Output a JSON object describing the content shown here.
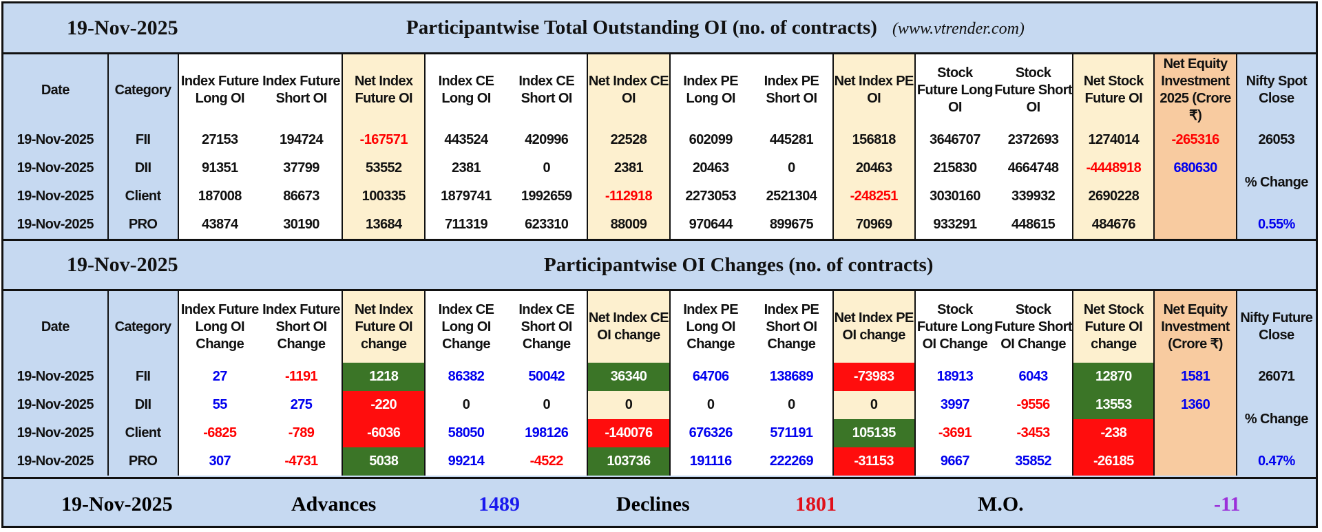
{
  "section1": {
    "date": "19-Nov-2025",
    "title": "Participantwise Total Outstanding OI (no. of contracts)",
    "site": "(www.vtrender.com)",
    "headers": [
      "Date",
      "Category",
      "Index Future Long OI",
      "Index Future Short OI",
      "Net Index Future OI",
      "Index CE Long OI",
      "Index CE Short OI",
      "Net Index CE OI",
      "Index PE Long OI",
      "Index PE Short OI",
      "Net Index PE OI",
      "Stock Future Long OI",
      "Stock Future Short OI",
      "Net Stock Future OI",
      "Net Equity Investment 2025 (Crore ₹)",
      "Nifty Spot Close"
    ],
    "rows": [
      [
        "19-Nov-2025",
        "FII",
        "27153",
        "194724",
        "-167571",
        "443524",
        "420996",
        "22528",
        "602099",
        "445281",
        "156818",
        "3646707",
        "2372693",
        "1274014",
        "-265316"
      ],
      [
        "19-Nov-2025",
        "DII",
        "91351",
        "37799",
        "53552",
        "2381",
        "0",
        "2381",
        "20463",
        "0",
        "20463",
        "215830",
        "4664748",
        "-4448918",
        "680630"
      ],
      [
        "19-Nov-2025",
        "Client",
        "187008",
        "86673",
        "100335",
        "1879741",
        "1992659",
        "-112918",
        "2273053",
        "2521304",
        "-248251",
        "3030160",
        "339932",
        "2690228",
        ""
      ],
      [
        "19-Nov-2025",
        "PRO",
        "43874",
        "30190",
        "13684",
        "711319",
        "623310",
        "88009",
        "970644",
        "899675",
        "70969",
        "933291",
        "448615",
        "484676",
        ""
      ]
    ],
    "nifty_close": "26053",
    "change_label": "% Change",
    "change_value": "0.55%"
  },
  "section2": {
    "date": "19-Nov-2025",
    "title": "Participantwise OI Changes (no. of contracts)",
    "headers": [
      "Date",
      "Category",
      "Index Future Long OI Change",
      "Index Future Short OI Change",
      "Net Index Future OI change",
      "Index CE Long OI Change",
      "Index CE Short OI Change",
      "Net Index CE OI change",
      "Index PE Long OI Change",
      "Index PE Short OI Change",
      "Net Index PE OI change",
      "Stock Future Long OI Change",
      "Stock Future Short OI Change",
      "Net Stock Future OI change",
      "Net Equity Investment (Crore ₹)",
      "Nifty Future Close"
    ],
    "rows": [
      [
        "19-Nov-2025",
        "FII",
        "27",
        "-1191",
        "1218",
        "86382",
        "50042",
        "36340",
        "64706",
        "138689",
        "-73983",
        "18913",
        "6043",
        "12870",
        "1581"
      ],
      [
        "19-Nov-2025",
        "DII",
        "55",
        "275",
        "-220",
        "0",
        "0",
        "0",
        "0",
        "0",
        "0",
        "3997",
        "-9556",
        "13553",
        "1360"
      ],
      [
        "19-Nov-2025",
        "Client",
        "-6825",
        "-789",
        "-6036",
        "58050",
        "198126",
        "-140076",
        "676326",
        "571191",
        "105135",
        "-3691",
        "-3453",
        "-238",
        ""
      ],
      [
        "19-Nov-2025",
        "PRO",
        "307",
        "-4731",
        "5038",
        "99214",
        "-4522",
        "103736",
        "191116",
        "222269",
        "-31153",
        "9667",
        "35852",
        "-26185",
        ""
      ]
    ],
    "nifty_close": "26071",
    "change_label": "% Change",
    "change_value": "0.47%"
  },
  "footer": {
    "date": "19-Nov-2025",
    "advances_label": "Advances",
    "advances": "1489",
    "declines_label": "Declines",
    "declines": "1801",
    "mo_label": "M.O.",
    "mo": "-11"
  },
  "colors": {
    "background": "#c6d9f1",
    "net_column": "#fdf0cf",
    "equity_column": "#f8cba0",
    "positive_fill": "#3b7527",
    "negative_fill": "#ff0d0d",
    "negative_text": "#ff0000",
    "positive_text": "#0000ee",
    "mo_text": "#9b30d9"
  }
}
